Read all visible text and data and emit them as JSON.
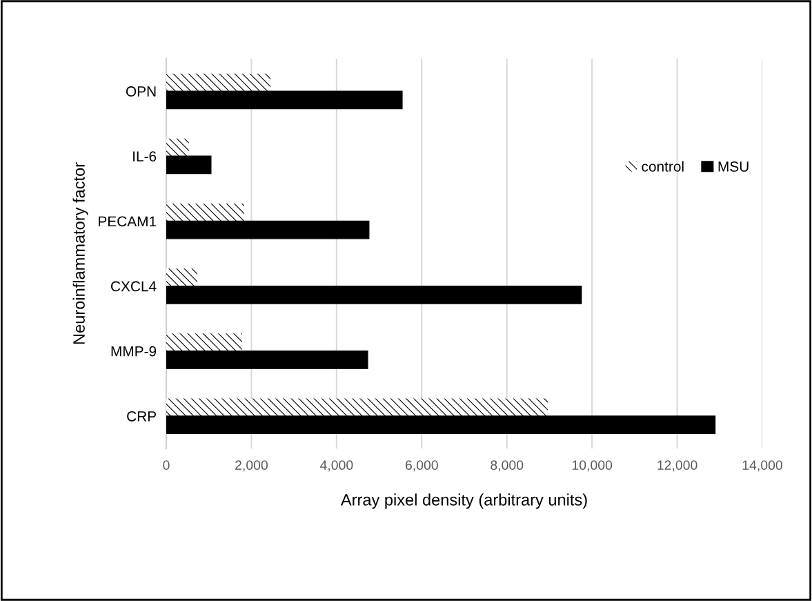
{
  "chart_data": {
    "type": "bar",
    "orientation": "horizontal",
    "xlabel": "Array pixel density (arbitrary units)",
    "ylabel": "Neuroinflammatory factor",
    "categories": [
      "OPN",
      "IL-6",
      "PECAM1",
      "CXCL4",
      "MMP-9",
      "CRP"
    ],
    "series": [
      {
        "name": "control",
        "color": "#ffffff",
        "values": [
          2450,
          530,
          1830,
          730,
          1780,
          8960
        ]
      },
      {
        "name": "MSU",
        "color": "#000000",
        "values": [
          5540,
          1050,
          4760,
          9750,
          4730,
          12890
        ]
      }
    ],
    "xlim": [
      0,
      14000
    ],
    "xticks": [
      {
        "value": 0,
        "label": "0"
      },
      {
        "value": 2000,
        "label": "2,000"
      },
      {
        "value": 4000,
        "label": "4,000"
      },
      {
        "value": 6000,
        "label": "6,000"
      },
      {
        "value": 8000,
        "label": "8,000"
      },
      {
        "value": 10000,
        "label": "10,000"
      },
      {
        "value": 12000,
        "label": "12,000"
      },
      {
        "value": 14000,
        "label": "14,000"
      }
    ],
    "grid": "x",
    "legend": "right"
  }
}
